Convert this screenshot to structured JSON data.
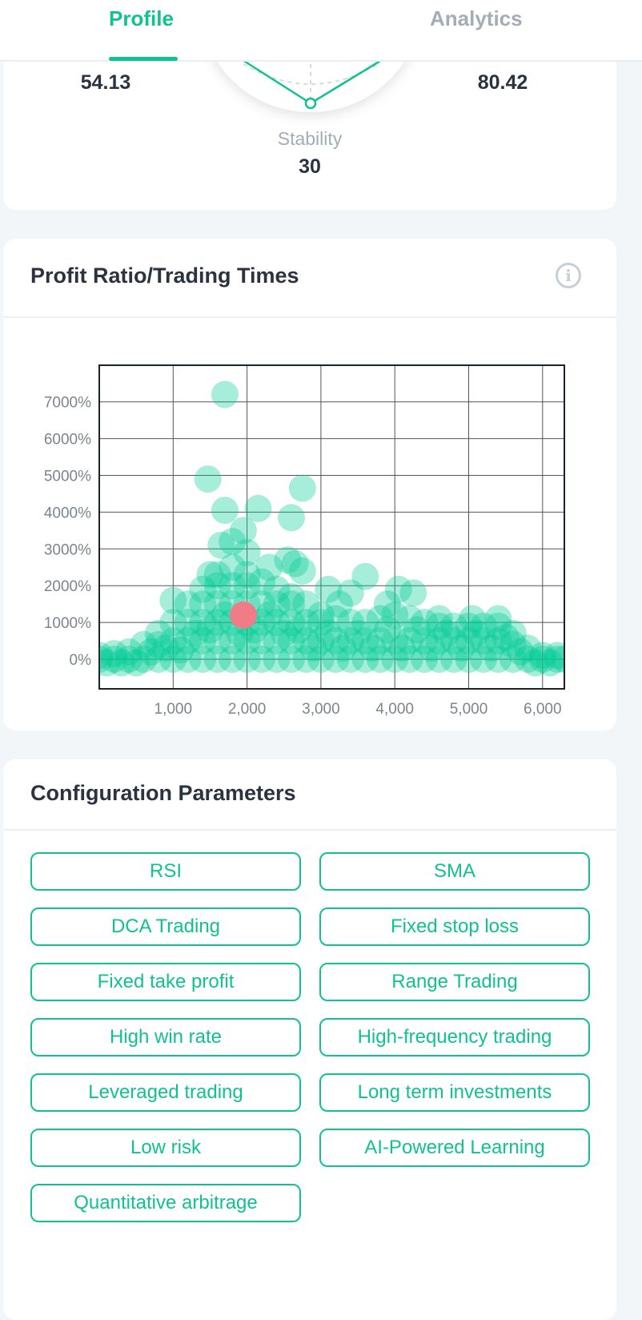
{
  "tabs": {
    "profile": "Profile",
    "analytics": "Analytics",
    "active": "profile"
  },
  "radar": {
    "left_value": "54.13",
    "right_value": "80.42",
    "bottom_label": "Stability",
    "bottom_value": "30"
  },
  "chart_card": {
    "title": "Profit Ratio/Trading Times",
    "info_icon": "info-circle-icon"
  },
  "chart_data": {
    "type": "scatter",
    "title": "",
    "xlabel": "",
    "ylabel": "",
    "xlim": [
      0,
      6300
    ],
    "ylim": [
      -800,
      8000
    ],
    "x_ticks": [
      1000,
      2000,
      3000,
      4000,
      5000,
      6000
    ],
    "x_tick_labels": [
      "1,000",
      "2,000",
      "3,000",
      "4,000",
      "5,000",
      "6,000"
    ],
    "y_ticks": [
      0,
      1000,
      2000,
      3000,
      4000,
      5000,
      6000,
      7000
    ],
    "y_tick_labels": [
      "0%",
      "1000%",
      "2000%",
      "3000%",
      "4000%",
      "5000%",
      "6000%",
      "7000%"
    ],
    "grid": true,
    "colors": {
      "points": "#00cc96",
      "highlight": "#f07c88"
    },
    "highlight": [
      1950,
      1200
    ],
    "points": [
      [
        1700,
        7200
      ],
      [
        1470,
        4900
      ],
      [
        1700,
        4050
      ],
      [
        2150,
        4100
      ],
      [
        2750,
        4650
      ],
      [
        2600,
        3850
      ],
      [
        1950,
        3500
      ],
      [
        1650,
        3100
      ],
      [
        1800,
        3200
      ],
      [
        2000,
        2900
      ],
      [
        2550,
        2700
      ],
      [
        2650,
        2600
      ],
      [
        2750,
        2400
      ],
      [
        2300,
        2500
      ],
      [
        3100,
        1900
      ],
      [
        3400,
        1800
      ],
      [
        3600,
        2250
      ],
      [
        4050,
        1900
      ],
      [
        4250,
        1800
      ],
      [
        3900,
        1500
      ],
      [
        1000,
        1600
      ],
      [
        1500,
        2300
      ],
      [
        3250,
        1500
      ],
      [
        4600,
        1100
      ],
      [
        5050,
        1100
      ],
      [
        5400,
        1100
      ],
      [
        0,
        0
      ],
      [
        0,
        100
      ],
      [
        200,
        0
      ],
      [
        200,
        150
      ],
      [
        400,
        0
      ],
      [
        400,
        200
      ],
      [
        600,
        0
      ],
      [
        600,
        400
      ],
      [
        800,
        0
      ],
      [
        800,
        400
      ],
      [
        800,
        700
      ],
      [
        1000,
        0
      ],
      [
        1000,
        500
      ],
      [
        1000,
        1000
      ],
      [
        1200,
        0
      ],
      [
        1200,
        500
      ],
      [
        1200,
        1000
      ],
      [
        1200,
        1500
      ],
      [
        1400,
        0
      ],
      [
        1400,
        500
      ],
      [
        1400,
        1000
      ],
      [
        1400,
        1500
      ],
      [
        1400,
        1900
      ],
      [
        1600,
        0
      ],
      [
        1600,
        500
      ],
      [
        1600,
        1000
      ],
      [
        1600,
        1500
      ],
      [
        1600,
        2000
      ],
      [
        1600,
        2300
      ],
      [
        1800,
        0
      ],
      [
        1800,
        500
      ],
      [
        1800,
        1000
      ],
      [
        1800,
        1500
      ],
      [
        1800,
        2000
      ],
      [
        1800,
        2500
      ],
      [
        2000,
        0
      ],
      [
        2000,
        500
      ],
      [
        2000,
        1000
      ],
      [
        2000,
        1500
      ],
      [
        2000,
        2000
      ],
      [
        2000,
        2300
      ],
      [
        2200,
        0
      ],
      [
        2200,
        500
      ],
      [
        2200,
        1000
      ],
      [
        2200,
        1500
      ],
      [
        2200,
        2100
      ],
      [
        2400,
        0
      ],
      [
        2400,
        500
      ],
      [
        2400,
        1000
      ],
      [
        2400,
        1500
      ],
      [
        2400,
        1900
      ],
      [
        2600,
        0
      ],
      [
        2600,
        500
      ],
      [
        2600,
        1000
      ],
      [
        2600,
        1500
      ],
      [
        2600,
        1700
      ],
      [
        2800,
        0
      ],
      [
        2800,
        500
      ],
      [
        2800,
        1000
      ],
      [
        2800,
        1500
      ],
      [
        3000,
        0
      ],
      [
        3000,
        500
      ],
      [
        3000,
        1000
      ],
      [
        3000,
        1200
      ],
      [
        3200,
        0
      ],
      [
        3200,
        500
      ],
      [
        3200,
        1100
      ],
      [
        3400,
        0
      ],
      [
        3400,
        500
      ],
      [
        3400,
        1000
      ],
      [
        3600,
        0
      ],
      [
        3600,
        500
      ],
      [
        3600,
        1000
      ],
      [
        3800,
        0
      ],
      [
        3800,
        500
      ],
      [
        3800,
        1100
      ],
      [
        4000,
        0
      ],
      [
        4000,
        500
      ],
      [
        4000,
        1200
      ],
      [
        4200,
        0
      ],
      [
        4200,
        500
      ],
      [
        4200,
        1100
      ],
      [
        4400,
        0
      ],
      [
        4400,
        500
      ],
      [
        4400,
        1000
      ],
      [
        4600,
        0
      ],
      [
        4600,
        500
      ],
      [
        4600,
        900
      ],
      [
        4800,
        0
      ],
      [
        4800,
        500
      ],
      [
        4800,
        900
      ],
      [
        5000,
        0
      ],
      [
        5000,
        500
      ],
      [
        5000,
        900
      ],
      [
        5200,
        0
      ],
      [
        5200,
        500
      ],
      [
        5200,
        900
      ],
      [
        5400,
        0
      ],
      [
        5400,
        500
      ],
      [
        5400,
        900
      ],
      [
        5600,
        0
      ],
      [
        5600,
        400
      ],
      [
        5600,
        700
      ],
      [
        5800,
        0
      ],
      [
        5800,
        300
      ],
      [
        6000,
        0
      ],
      [
        6000,
        100
      ],
      [
        6200,
        0
      ],
      [
        6200,
        100
      ],
      [
        100,
        -100
      ],
      [
        300,
        -100
      ],
      [
        500,
        -100
      ],
      [
        700,
        200
      ],
      [
        900,
        300
      ],
      [
        1100,
        250
      ],
      [
        1300,
        700
      ],
      [
        1500,
        800
      ],
      [
        1700,
        1200
      ],
      [
        1900,
        700
      ],
      [
        2100,
        800
      ],
      [
        2300,
        1200
      ],
      [
        2500,
        700
      ],
      [
        2700,
        800
      ],
      [
        2900,
        300
      ],
      [
        3100,
        700
      ],
      [
        3300,
        300
      ],
      [
        3500,
        700
      ],
      [
        3700,
        300
      ],
      [
        3900,
        800
      ],
      [
        4100,
        300
      ],
      [
        4300,
        800
      ],
      [
        4500,
        300
      ],
      [
        4700,
        700
      ],
      [
        4900,
        300
      ],
      [
        5100,
        700
      ],
      [
        5300,
        300
      ],
      [
        5500,
        600
      ],
      [
        5700,
        200
      ],
      [
        5900,
        -100
      ],
      [
        6100,
        -100
      ],
      [
        6300,
        0
      ]
    ]
  },
  "config": {
    "title": "Configuration Parameters",
    "tags": [
      "RSI",
      "SMA",
      "DCA Trading",
      "Fixed stop loss",
      "Fixed take profit",
      "Range Trading",
      "High win rate",
      "High-frequency trading",
      "Leveraged trading",
      "Long term investments",
      "Low risk",
      "AI-Powered Learning",
      "Quantitative arbitrage"
    ]
  }
}
